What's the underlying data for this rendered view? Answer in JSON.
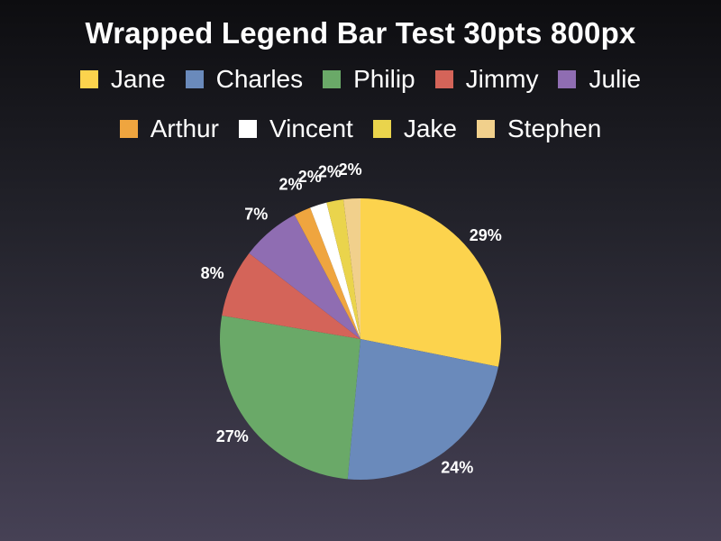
{
  "chart_data": {
    "type": "pie",
    "title": "Wrapped Legend Bar Test 30pts 800px",
    "legend_position": "top",
    "slices": [
      {
        "name": "Jane",
        "value": 29,
        "label": "29%",
        "color": "#fcd34d"
      },
      {
        "name": "Charles",
        "value": 24,
        "label": "24%",
        "color": "#6a8abb"
      },
      {
        "name": "Philip",
        "value": 27,
        "label": "27%",
        "color": "#6aa968"
      },
      {
        "name": "Jimmy",
        "value": 8,
        "label": "8%",
        "color": "#d46459"
      },
      {
        "name": "Julie",
        "value": 7,
        "label": "7%",
        "color": "#8f6db2"
      },
      {
        "name": "Arthur",
        "value": 2,
        "label": "2%",
        "color": "#efa53f"
      },
      {
        "name": "Vincent",
        "value": 2,
        "label": "2%",
        "color": "#ffffff"
      },
      {
        "name": "Jake",
        "value": 2,
        "label": "2%",
        "color": "#ead44c"
      },
      {
        "name": "Stephen",
        "value": 2,
        "label": "2%",
        "color": "#f1d08c"
      }
    ]
  }
}
